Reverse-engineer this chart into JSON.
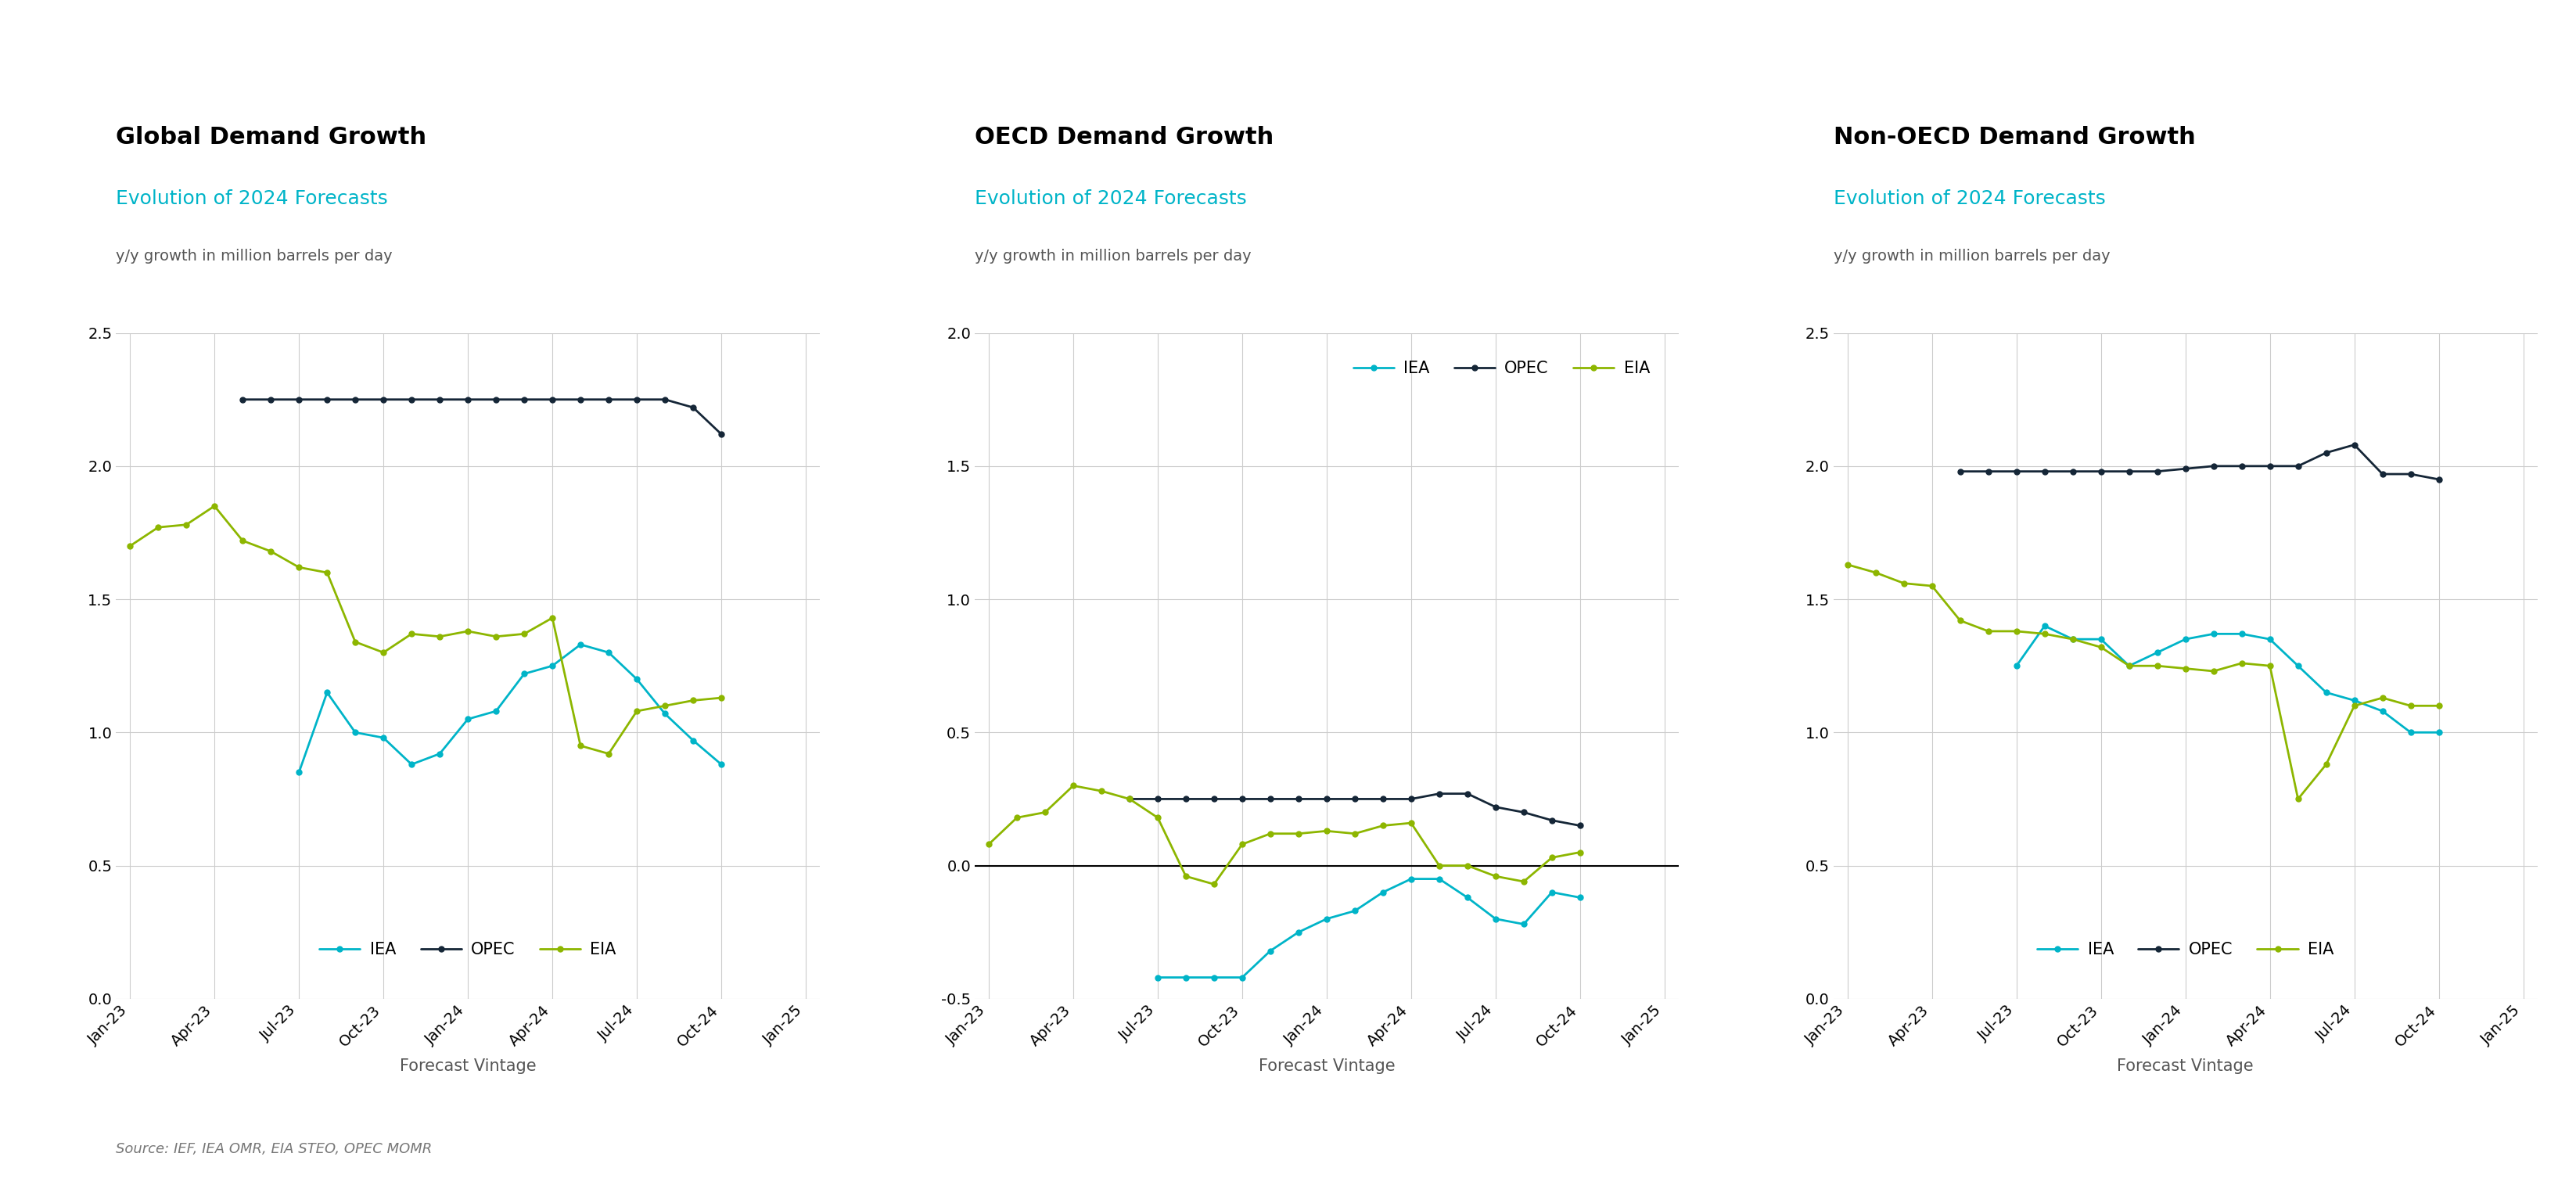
{
  "charts": [
    {
      "title": "Global Demand Growth",
      "subtitle": "Evolution of 2024 Forecasts",
      "ylabel": "y/y growth in million barrels per day",
      "xlabel": "Forecast Vintage",
      "ylim": [
        0.0,
        2.5
      ],
      "yticks": [
        0.0,
        0.5,
        1.0,
        1.5,
        2.0,
        2.5
      ],
      "hline": null,
      "legend_loc": "lower center",
      "series": {
        "IEA": {
          "color": "#00B4C8",
          "x": [
            6,
            7,
            8,
            9,
            10,
            11,
            12,
            13,
            14,
            15,
            16,
            17,
            18,
            19,
            20,
            21
          ],
          "y": [
            0.85,
            1.15,
            1.0,
            0.98,
            0.88,
            0.92,
            1.05,
            1.08,
            1.22,
            1.25,
            1.33,
            1.3,
            1.2,
            1.07,
            0.97,
            0.88
          ]
        },
        "OPEC": {
          "color": "#152637",
          "x": [
            4,
            5,
            6,
            7,
            8,
            9,
            10,
            11,
            12,
            13,
            14,
            15,
            16,
            17,
            18,
            19,
            20,
            21
          ],
          "y": [
            2.25,
            2.25,
            2.25,
            2.25,
            2.25,
            2.25,
            2.25,
            2.25,
            2.25,
            2.25,
            2.25,
            2.25,
            2.25,
            2.25,
            2.25,
            2.25,
            2.22,
            2.12
          ]
        },
        "EIA": {
          "color": "#8DB600",
          "x": [
            0,
            1,
            2,
            3,
            4,
            5,
            6,
            7,
            8,
            9,
            10,
            11,
            12,
            13,
            14,
            15,
            16,
            17,
            18,
            19,
            20,
            21
          ],
          "y": [
            1.7,
            1.77,
            1.78,
            1.85,
            1.72,
            1.68,
            1.62,
            1.6,
            1.34,
            1.3,
            1.37,
            1.36,
            1.38,
            1.36,
            1.37,
            1.43,
            0.95,
            0.92,
            1.08,
            1.1,
            1.12,
            1.13
          ]
        }
      }
    },
    {
      "title": "OECD Demand Growth",
      "subtitle": "Evolution of 2024 Forecasts",
      "ylabel": "y/y growth in million barrels per day",
      "xlabel": "Forecast Vintage",
      "ylim": [
        -0.5,
        2.0
      ],
      "yticks": [
        -0.5,
        0.0,
        0.5,
        1.0,
        1.5,
        2.0
      ],
      "hline": 0.0,
      "legend_loc": "upper right",
      "series": {
        "IEA": {
          "color": "#00B4C8",
          "x": [
            6,
            7,
            8,
            9,
            10,
            11,
            12,
            13,
            14,
            15,
            16,
            17,
            18,
            19,
            20,
            21
          ],
          "y": [
            -0.42,
            -0.42,
            -0.42,
            -0.42,
            -0.32,
            -0.25,
            -0.2,
            -0.17,
            -0.1,
            -0.05,
            -0.05,
            -0.12,
            -0.2,
            -0.22,
            -0.1,
            -0.12
          ]
        },
        "OPEC": {
          "color": "#152637",
          "x": [
            5,
            6,
            7,
            8,
            9,
            10,
            11,
            12,
            13,
            14,
            15,
            16,
            17,
            18,
            19,
            20,
            21
          ],
          "y": [
            0.25,
            0.25,
            0.25,
            0.25,
            0.25,
            0.25,
            0.25,
            0.25,
            0.25,
            0.25,
            0.25,
            0.27,
            0.27,
            0.22,
            0.2,
            0.17,
            0.15
          ]
        },
        "EIA": {
          "color": "#8DB600",
          "x": [
            0,
            1,
            2,
            3,
            4,
            5,
            6,
            7,
            8,
            9,
            10,
            11,
            12,
            13,
            14,
            15,
            16,
            17,
            18,
            19,
            20,
            21
          ],
          "y": [
            0.08,
            0.18,
            0.2,
            0.3,
            0.28,
            0.25,
            0.18,
            -0.04,
            -0.07,
            0.08,
            0.12,
            0.12,
            0.13,
            0.12,
            0.15,
            0.16,
            0.0,
            0.0,
            -0.04,
            -0.06,
            0.03,
            0.05
          ]
        }
      }
    },
    {
      "title": "Non-OECD Demand Growth",
      "subtitle": "Evolution of 2024 Forecasts",
      "ylabel": "y/y growth in million barrels per day",
      "xlabel": "Forecast Vintage",
      "ylim": [
        0.0,
        2.5
      ],
      "yticks": [
        0.0,
        0.5,
        1.0,
        1.5,
        2.0,
        2.5
      ],
      "hline": null,
      "legend_loc": "lower center",
      "series": {
        "IEA": {
          "color": "#00B4C8",
          "x": [
            6,
            7,
            8,
            9,
            10,
            11,
            12,
            13,
            14,
            15,
            16,
            17,
            18,
            19,
            20,
            21
          ],
          "y": [
            1.25,
            1.4,
            1.35,
            1.35,
            1.25,
            1.3,
            1.35,
            1.37,
            1.37,
            1.35,
            1.25,
            1.15,
            1.12,
            1.08,
            1.0,
            1.0
          ]
        },
        "OPEC": {
          "color": "#152637",
          "x": [
            4,
            5,
            6,
            7,
            8,
            9,
            10,
            11,
            12,
            13,
            14,
            15,
            16,
            17,
            18,
            19,
            20,
            21
          ],
          "y": [
            1.98,
            1.98,
            1.98,
            1.98,
            1.98,
            1.98,
            1.98,
            1.98,
            1.99,
            2.0,
            2.0,
            2.0,
            2.0,
            2.05,
            2.08,
            1.97,
            1.97,
            1.95
          ]
        },
        "EIA": {
          "color": "#8DB600",
          "x": [
            0,
            1,
            2,
            3,
            4,
            5,
            6,
            7,
            8,
            9,
            10,
            11,
            12,
            13,
            14,
            15,
            16,
            17,
            18,
            19,
            20,
            21
          ],
          "y": [
            1.63,
            1.6,
            1.56,
            1.55,
            1.42,
            1.38,
            1.38,
            1.37,
            1.35,
            1.32,
            1.25,
            1.25,
            1.24,
            1.23,
            1.26,
            1.25,
            0.75,
            0.88,
            1.1,
            1.13,
            1.1,
            1.1
          ]
        }
      }
    }
  ],
  "xtick_labels": [
    "Jan-23",
    "Apr-23",
    "Jul-23",
    "Oct-23",
    "Jan-24",
    "Apr-24",
    "Jul-24",
    "Oct-24",
    "Jan-25"
  ],
  "xtick_positions": [
    0,
    3,
    6,
    9,
    12,
    15,
    18,
    21,
    24
  ],
  "title_color": "#000000",
  "subtitle_color": "#00B4C8",
  "label_color": "#555555",
  "source_color": "#777777",
  "grid_color": "#cccccc",
  "bg_color": "#ffffff",
  "source_text": "Source: IEF, IEA OMR, EIA STEO, OPEC MOMR",
  "marker": "o",
  "markersize": 5,
  "linewidth": 2.0,
  "title_fontsize": 22,
  "subtitle_fontsize": 18,
  "ylabel_fontsize": 14,
  "tick_fontsize": 14,
  "xlabel_fontsize": 15,
  "legend_fontsize": 15,
  "source_fontsize": 13
}
